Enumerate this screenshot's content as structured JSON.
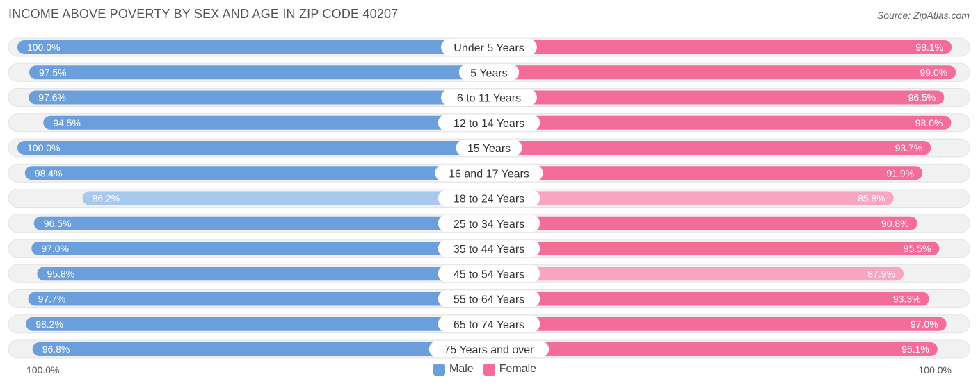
{
  "title": "INCOME ABOVE POVERTY BY SEX AND AGE IN ZIP CODE 40207",
  "source": "Source: ZipAtlas.com",
  "chart_data": {
    "type": "bar",
    "orientation": "horizontal-diverging",
    "categories": [
      "Under 5 Years",
      "5 Years",
      "6 to 11 Years",
      "12 to 14 Years",
      "15 Years",
      "16 and 17 Years",
      "18 to 24 Years",
      "25 to 34 Years",
      "35 to 44 Years",
      "45 to 54 Years",
      "55 to 64 Years",
      "65 to 74 Years",
      "75 Years and over"
    ],
    "series": [
      {
        "name": "Male",
        "values": [
          100.0,
          97.5,
          97.6,
          94.5,
          100.0,
          98.4,
          86.2,
          96.5,
          97.0,
          95.8,
          97.7,
          98.2,
          96.8
        ],
        "labels": [
          "100.0%",
          "97.5%",
          "97.6%",
          "94.5%",
          "100.0%",
          "98.4%",
          "86.2%",
          "96.5%",
          "97.0%",
          "95.8%",
          "97.7%",
          "98.2%",
          "96.8%"
        ]
      },
      {
        "name": "Female",
        "values": [
          98.1,
          99.0,
          96.5,
          98.0,
          93.7,
          91.9,
          85.8,
          90.8,
          95.5,
          87.9,
          93.3,
          97.0,
          95.1
        ],
        "labels": [
          "98.1%",
          "99.0%",
          "96.5%",
          "98.0%",
          "93.7%",
          "91.9%",
          "85.8%",
          "90.8%",
          "95.5%",
          "87.9%",
          "93.3%",
          "97.0%",
          "95.1%"
        ]
      }
    ],
    "axis_left_label": "100.0%",
    "axis_right_label": "100.0%",
    "xlim": [
      0,
      100
    ],
    "legend": [
      "Male",
      "Female"
    ],
    "legend_position": "bottom-center"
  },
  "colors": {
    "male": "#6a9fdc",
    "male_light": "#a9c8ee",
    "female": "#f46c98",
    "female_light": "#f7a5c0",
    "track": "#f1f1f1"
  }
}
